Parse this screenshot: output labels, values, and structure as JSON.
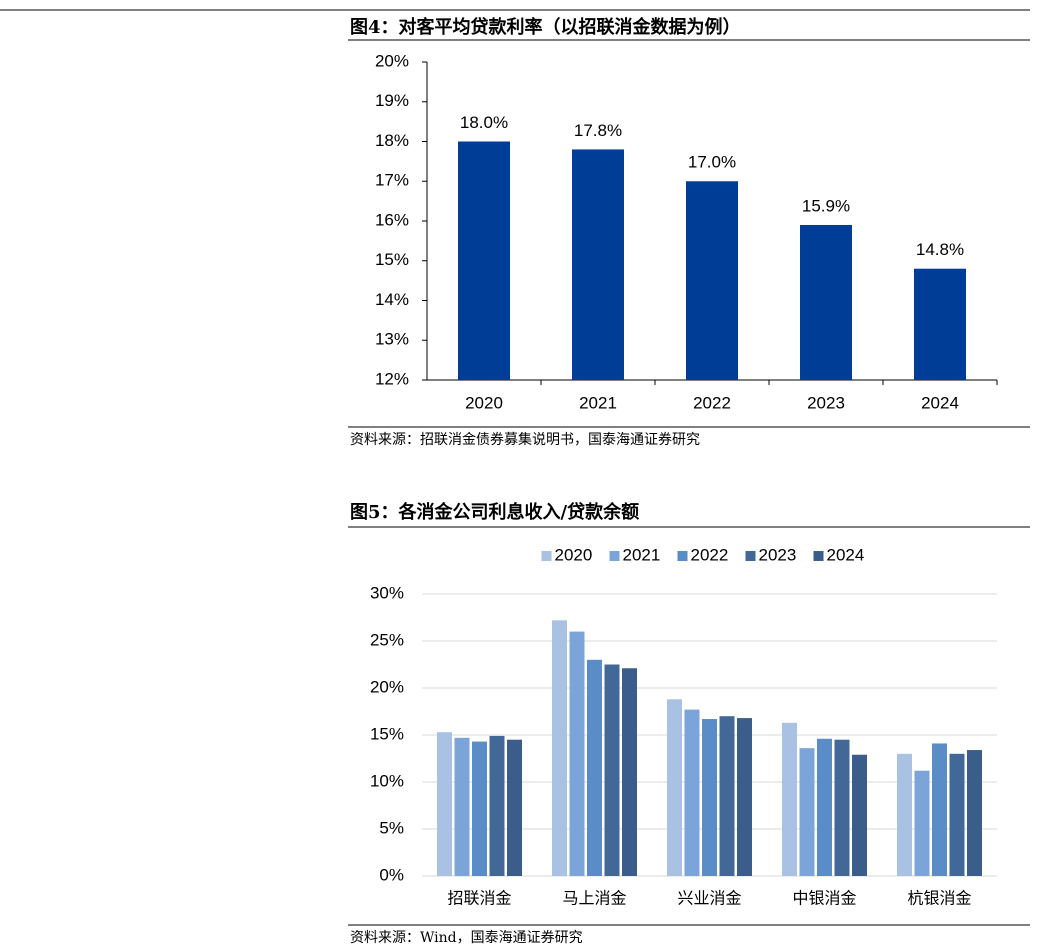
{
  "chart_data": [
    {
      "type": "bar",
      "title": "图4：对客平均贷款利率（以招联消金数据为例）",
      "categories": [
        "2020",
        "2021",
        "2022",
        "2023",
        "2024"
      ],
      "values": [
        18.0,
        17.8,
        17.0,
        15.9,
        14.8
      ],
      "value_labels": [
        "18.0%",
        "17.8%",
        "17.0%",
        "15.9%",
        "14.8%"
      ],
      "color": "#003d96",
      "ylim": [
        12,
        20
      ],
      "yticks": [
        {
          "value": 12,
          "label": "12%"
        },
        {
          "value": 13,
          "label": "13%"
        },
        {
          "value": 14,
          "label": "14%"
        },
        {
          "value": 15,
          "label": "15%"
        },
        {
          "value": 16,
          "label": "16%"
        },
        {
          "value": 17,
          "label": "17%"
        },
        {
          "value": 18,
          "label": "18%"
        },
        {
          "value": 19,
          "label": "19%"
        },
        {
          "value": 20,
          "label": "20%"
        }
      ],
      "grid": false,
      "source": "资料来源：招联消金债券募集说明书，国泰海通证券研究"
    },
    {
      "type": "grouped-bar",
      "title": "图5：各消金公司利息收入/贷款余额",
      "categories": [
        "招联消金",
        "马上消金",
        "兴业消金",
        "中银消金",
        "杭银消金"
      ],
      "series": [
        {
          "name": "2020",
          "color": "#a9c2e3",
          "values": [
            15.3,
            27.2,
            18.8,
            16.3,
            13.0
          ]
        },
        {
          "name": "2021",
          "color": "#7ba4d8",
          "values": [
            14.7,
            26.0,
            17.7,
            13.6,
            11.2
          ]
        },
        {
          "name": "2022",
          "color": "#5a8dc8",
          "values": [
            14.3,
            23.0,
            16.7,
            14.6,
            14.1
          ]
        },
        {
          "name": "2023",
          "color": "#416896",
          "values": [
            14.9,
            22.5,
            17.0,
            14.5,
            13.0
          ]
        },
        {
          "name": "2024",
          "color": "#3a5d8c",
          "values": [
            14.5,
            22.1,
            16.8,
            12.9,
            13.4
          ]
        }
      ],
      "ylim": [
        0,
        30
      ],
      "yticks": [
        {
          "value": 0,
          "label": "0%"
        },
        {
          "value": 5,
          "label": "5%"
        },
        {
          "value": 10,
          "label": "10%"
        },
        {
          "value": 15,
          "label": "15%"
        },
        {
          "value": 20,
          "label": "20%"
        },
        {
          "value": 25,
          "label": "25%"
        },
        {
          "value": 30,
          "label": "30%"
        }
      ],
      "grid": true,
      "legend": "top",
      "source": "资料来源：Wind，国泰海通证券研究"
    }
  ]
}
